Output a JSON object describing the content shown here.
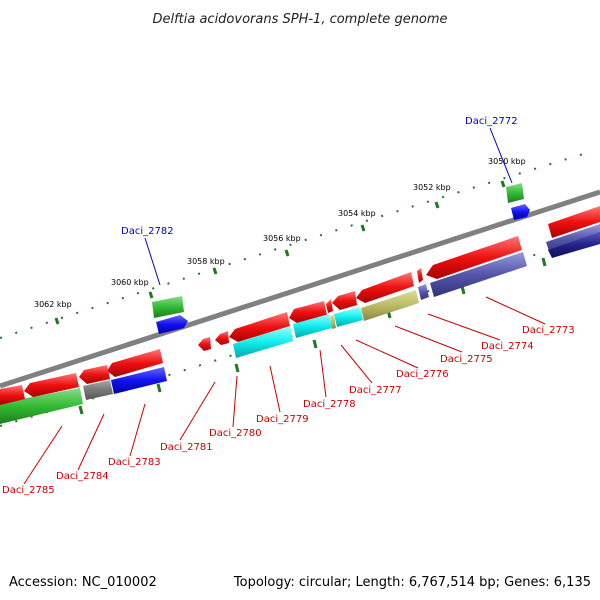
{
  "title": "Delftia acidovorans SPH-1, complete genome",
  "footer": {
    "accession": "Accession: NC_010002",
    "summary": "Topology: circular; Length: 6,767,514 bp; Genes: 6,135"
  },
  "scale_labels": [
    "3050 kbp",
    "3052 kbp",
    "3054 kbp",
    "3056 kbp",
    "3058 kbp",
    "3060 kbp",
    "3062 kbp"
  ],
  "colors": {
    "backbone": "#808080",
    "red": "#ee1111",
    "green": "#33bb33",
    "blue": "#1111ee",
    "cyan": "#11eeee",
    "purple": "#5555aa",
    "navy": "#222288",
    "olive": "#bbbb66",
    "gray": "#777777",
    "tick": "#227722",
    "label_red": "#cc0000",
    "label_blue": "#0000cc"
  },
  "genes": [
    {
      "name": "Daci_2772",
      "label_color": "label_blue"
    },
    {
      "name": "Daci_2773",
      "label_color": "label_red"
    },
    {
      "name": "Daci_2774",
      "label_color": "label_red"
    },
    {
      "name": "Daci_2775",
      "label_color": "label_red"
    },
    {
      "name": "Daci_2776",
      "label_color": "label_red"
    },
    {
      "name": "Daci_2777",
      "label_color": "label_red"
    },
    {
      "name": "Daci_2778",
      "label_color": "label_red"
    },
    {
      "name": "Daci_2779",
      "label_color": "label_red"
    },
    {
      "name": "Daci_2780",
      "label_color": "label_red"
    },
    {
      "name": "Daci_2781",
      "label_color": "label_red"
    },
    {
      "name": "Daci_2782",
      "label_color": "label_blue"
    },
    {
      "name": "Daci_2783",
      "label_color": "label_red"
    },
    {
      "name": "Daci_2784",
      "label_color": "label_red"
    },
    {
      "name": "Daci_2785",
      "label_color": "label_red"
    }
  ]
}
